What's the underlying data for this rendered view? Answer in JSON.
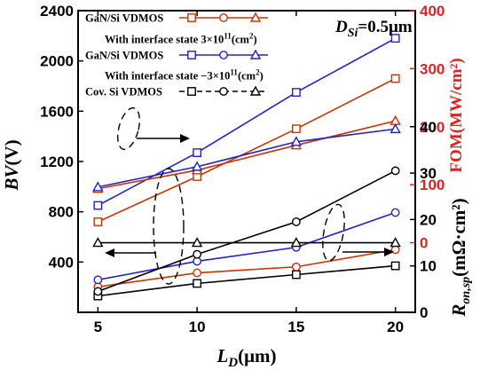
{
  "chart_data": {
    "type": "line",
    "x": [
      5,
      10,
      15,
      20
    ],
    "xlabel": {
      "main": "L",
      "sub": "D",
      "unit": "(μm)"
    },
    "x_ticks": [
      "5",
      "10",
      "15",
      "20"
    ],
    "xlim": [
      4,
      21
    ],
    "y_left": {
      "label": {
        "main": "BV",
        "unit": "(V)"
      },
      "ticks": [
        "400",
        "800",
        "1200",
        "1600",
        "2000",
        "2400"
      ],
      "ylim": [
        0,
        2400
      ]
    },
    "y_right_top": {
      "label": "FOM(MW/cm²)",
      "ticks": [
        "0",
        "100",
        "200",
        "300",
        "400"
      ],
      "ylim": [
        -120,
        400
      ],
      "color": "#dd2222"
    },
    "y_right_bottom": {
      "label": {
        "main": "R",
        "sub": "on,sp",
        "unit": "(mΩ·cm²)"
      },
      "ticks": [
        "0",
        "10",
        "20",
        "30",
        "40"
      ],
      "ylim": [
        0,
        65
      ]
    },
    "annotation": {
      "main": "D",
      "sub": "Si",
      "rest": "=0.5μm"
    },
    "legend": [
      {
        "text": "GaN/Si VDMOS",
        "color": "#cc3300",
        "markers": [
          "square",
          "circle",
          "triangle"
        ]
      },
      {
        "text": "With interface state   3×10",
        "sup": "11",
        "tail": "(cm",
        "sup2": "2",
        "tail2": ")"
      },
      {
        "text": "GaN/Si VDMOS",
        "color": "#2222cc",
        "markers": [
          "square",
          "circle",
          "triangle"
        ]
      },
      {
        "text": "With interface state  −3×10",
        "sup": "11",
        "tail": "(cm",
        "sup2": "2",
        "tail2": ")"
      },
      {
        "text": "Cov. Si VDMOS",
        "color": "#000000",
        "markers": [
          "square",
          "circle",
          "triangle"
        ]
      }
    ],
    "series": [
      {
        "group": "GaN/Si VDMOS +3×10¹¹",
        "metric": "BV",
        "axis": "y_left",
        "marker": "square",
        "color": "#cc3300",
        "values": [
          720,
          1080,
          1460,
          1860
        ]
      },
      {
        "group": "GaN/Si VDMOS −3×10¹¹",
        "metric": "BV",
        "axis": "y_left",
        "marker": "square",
        "color": "#2222cc",
        "values": [
          850,
          1270,
          1750,
          2180
        ]
      },
      {
        "group": "Cov. Si VDMOS",
        "metric": "BV",
        "axis": "y_left",
        "marker": "square",
        "color": "#000000",
        "values": [
          130,
          230,
          300,
          370
        ]
      },
      {
        "group": "GaN/Si VDMOS +3×10¹¹",
        "metric": "Ron,sp",
        "axis": "y_right_bottom",
        "marker": "circle",
        "color": "#cc3300",
        "values": [
          5.5,
          8.5,
          9.8,
          13.5
        ]
      },
      {
        "group": "GaN/Si VDMOS −3×10¹¹",
        "metric": "Ron,sp",
        "axis": "y_right_bottom",
        "marker": "circle",
        "color": "#2222cc",
        "values": [
          7,
          11,
          14,
          21.5
        ]
      },
      {
        "group": "Cov. Si VDMOS",
        "metric": "Ron,sp",
        "axis": "y_right_bottom",
        "marker": "circle",
        "color": "#000000",
        "values": [
          4.5,
          12.5,
          19.5,
          30.5
        ]
      },
      {
        "group": "GaN/Si VDMOS +3×10¹¹",
        "metric": "FOM",
        "axis": "y_right_top",
        "marker": "triangle",
        "color": "#cc3300",
        "values": [
          93,
          125,
          168,
          210
        ]
      },
      {
        "group": "GaN/Si VDMOS −3×10¹¹",
        "metric": "FOM",
        "axis": "y_right_top",
        "marker": "triangle",
        "color": "#2222cc",
        "values": [
          96,
          131,
          174,
          196
        ]
      },
      {
        "group": "Cov. Si VDMOS",
        "metric": "FOM",
        "axis": "y_right_top",
        "marker": "triangle",
        "color": "#000000",
        "values": [
          0,
          0,
          0,
          0
        ]
      }
    ]
  }
}
